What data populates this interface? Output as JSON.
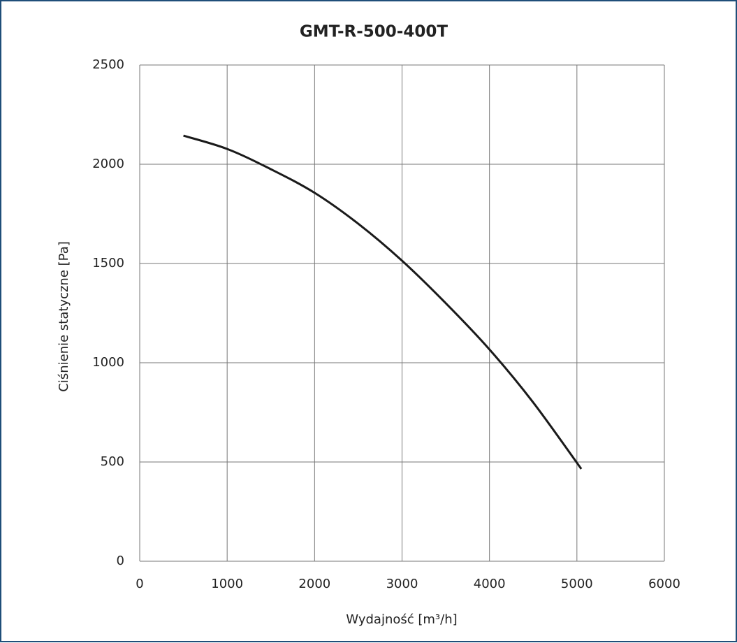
{
  "chart_data": {
    "type": "line",
    "title": "GMT-R-500-400T",
    "x_label": "Wydajność [m³/h]",
    "y_label": "Ciśnienie statyczne [Pa]",
    "x": [
      500,
      1000,
      1500,
      2000,
      2500,
      3000,
      3500,
      4000,
      4500,
      5050
    ],
    "series": [
      {
        "color": "#1a1a1a",
        "values": [
          2144,
          2077,
          1975,
          1856,
          1700,
          1514,
          1300,
          1067,
          800,
          465
        ]
      }
    ],
    "xlim": [
      0,
      6000
    ],
    "xticks": [
      0,
      1000,
      2000,
      3000,
      4000,
      5000,
      6000
    ],
    "ylim": [
      0,
      2500
    ],
    "yticks": [
      0,
      500,
      1000,
      1500,
      2000,
      2500
    ],
    "grid": true
  }
}
